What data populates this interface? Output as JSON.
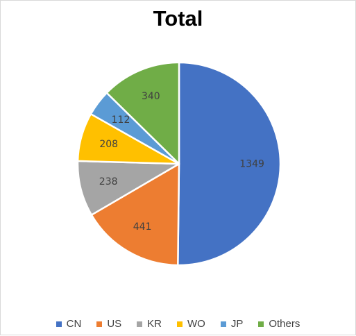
{
  "chart_data": {
    "type": "pie",
    "title": "Total",
    "categories": [
      "CN",
      "US",
      "KR",
      "WO",
      "JP",
      "Others"
    ],
    "values": [
      1349,
      441,
      238,
      208,
      112,
      340
    ],
    "colors": [
      "#4472c4",
      "#ed7d31",
      "#a5a5a5",
      "#ffc000",
      "#5b9bd5",
      "#70ad47"
    ],
    "data_labels": [
      "1349",
      "441",
      "238",
      "208",
      "112",
      "340"
    ],
    "start_angle_deg": 0,
    "direction": "clockwise",
    "legend_position": "bottom"
  }
}
